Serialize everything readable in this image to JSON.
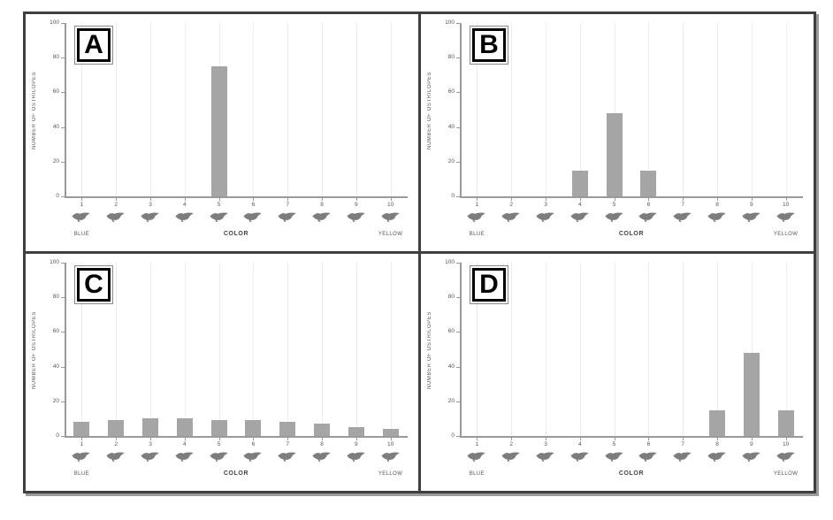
{
  "figure": {
    "ylabel": "NUMBER OF OSTRILOPES",
    "xlabel": "COLOR",
    "x_axis_left_label": "BLUE",
    "x_axis_right_label": "YELLOW",
    "categories": [
      "1",
      "2",
      "3",
      "4",
      "5",
      "6",
      "7",
      "8",
      "9",
      "10"
    ],
    "yticks": [
      "0",
      "20",
      "40",
      "60",
      "80",
      "100"
    ],
    "ylim": [
      0,
      100
    ],
    "colors": {
      "bar": "#a5a5a5",
      "axis": "#9a9a9a",
      "frame": "#3f3f3f",
      "gridline": "#ededed",
      "bird": "#7d7d7d",
      "text": "#555555"
    }
  },
  "chart_data": [
    {
      "type": "bar",
      "title": "A",
      "categories": [
        1,
        2,
        3,
        4,
        5,
        6,
        7,
        8,
        9,
        10
      ],
      "values": [
        0,
        0,
        0,
        0,
        75,
        0,
        0,
        0,
        0,
        0
      ],
      "xlabel": "COLOR",
      "ylabel": "NUMBER OF OSTRILOPES",
      "ylim": [
        0,
        100
      ],
      "x_left_end": "BLUE",
      "x_right_end": "YELLOW",
      "legend": "none",
      "grid": "faint-vertical"
    },
    {
      "type": "bar",
      "title": "B",
      "categories": [
        1,
        2,
        3,
        4,
        5,
        6,
        7,
        8,
        9,
        10
      ],
      "values": [
        0,
        0,
        0,
        15,
        48,
        15,
        0,
        0,
        0,
        0
      ],
      "xlabel": "COLOR",
      "ylabel": "NUMBER OF OSTRILOPES",
      "ylim": [
        0,
        100
      ],
      "x_left_end": "BLUE",
      "x_right_end": "YELLOW",
      "legend": "none",
      "grid": "faint-vertical"
    },
    {
      "type": "bar",
      "title": "C",
      "categories": [
        1,
        2,
        3,
        4,
        5,
        6,
        7,
        8,
        9,
        10
      ],
      "values": [
        8,
        9,
        10,
        10,
        9,
        9,
        8,
        7,
        5,
        4
      ],
      "xlabel": "COLOR",
      "ylabel": "NUMBER OF OSTRILOPES",
      "ylim": [
        0,
        100
      ],
      "x_left_end": "BLUE",
      "x_right_end": "YELLOW",
      "legend": "none",
      "grid": "faint-vertical"
    },
    {
      "type": "bar",
      "title": "D",
      "categories": [
        1,
        2,
        3,
        4,
        5,
        6,
        7,
        8,
        9,
        10
      ],
      "values": [
        0,
        0,
        0,
        0,
        0,
        0,
        0,
        15,
        48,
        15
      ],
      "xlabel": "COLOR",
      "ylabel": "NUMBER OF OSTRILOPES",
      "ylim": [
        0,
        100
      ],
      "x_left_end": "BLUE",
      "x_right_end": "YELLOW",
      "legend": "none",
      "grid": "faint-vertical"
    }
  ]
}
